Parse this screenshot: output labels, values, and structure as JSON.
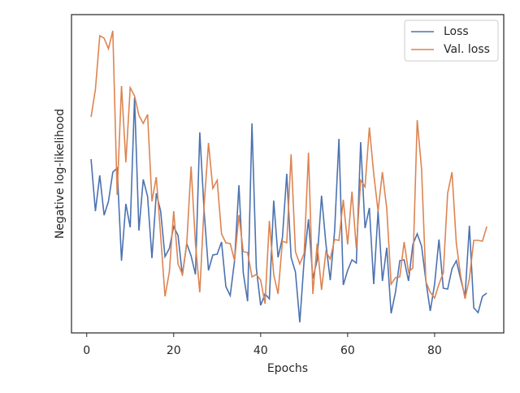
{
  "chart_data": {
    "type": "line",
    "xlabel": "Epochs",
    "ylabel": "Negative log-likelihood",
    "x": [
      1,
      2,
      3,
      4,
      5,
      6,
      7,
      8,
      9,
      10,
      11,
      12,
      13,
      14,
      15,
      16,
      17,
      18,
      19,
      20,
      21,
      22,
      23,
      24,
      25,
      26,
      27,
      28,
      29,
      30,
      31,
      32,
      33,
      34,
      35,
      36,
      37,
      38,
      39,
      40,
      41,
      42,
      43,
      44,
      45,
      46,
      47,
      48,
      49,
      50,
      51,
      52,
      53,
      54,
      55,
      56,
      57,
      58,
      59,
      60,
      61,
      62,
      63,
      64,
      65,
      66,
      67,
      68,
      69,
      70,
      71,
      72,
      73,
      74,
      75,
      76,
      77,
      78,
      79,
      80,
      81,
      82,
      83,
      84,
      85,
      86,
      87,
      88,
      89,
      90,
      91,
      92
    ],
    "series": [
      {
        "name": "Loss",
        "color": "#4c72b0",
        "values": [
          214,
          150,
          194,
          145,
          162,
          198,
          203,
          89,
          159,
          130,
          290,
          126,
          189,
          168,
          92,
          172,
          150,
          94,
          104,
          131,
          120,
          71,
          110,
          95,
          72,
          247,
          150,
          77,
          96,
          97,
          112,
          57,
          46,
          89,
          182,
          74,
          39,
          258,
          80,
          34,
          48,
          42,
          163,
          93,
          117,
          196,
          93,
          75,
          13,
          90,
          140,
          67,
          90,
          169,
          110,
          65,
          125,
          239,
          59,
          77,
          90,
          86,
          235,
          129,
          154,
          60,
          150,
          64,
          105,
          24,
          50,
          89,
          90,
          64,
          109,
          122,
          107,
          64,
          27,
          60,
          115,
          55,
          54,
          79,
          89,
          66,
          45,
          132,
          31,
          25,
          45,
          49
        ]
      },
      {
        "name": "Val. loss",
        "color": "#dd8452",
        "values": [
          266,
          300,
          366,
          363,
          350,
          372,
          170,
          304,
          210,
          302,
          292,
          268,
          258,
          269,
          162,
          192,
          120,
          45,
          75,
          150,
          85,
          72,
          110,
          205,
          110,
          50,
          157,
          234,
          178,
          188,
          122,
          111,
          110,
          89,
          145,
          100,
          99,
          69,
          72,
          65,
          36,
          138,
          72,
          48,
          113,
          111,
          220,
          100,
          85,
          98,
          222,
          48,
          110,
          53,
          100,
          91,
          115,
          114,
          164,
          109,
          174,
          104,
          188,
          180,
          253,
          196,
          150,
          198,
          153,
          60,
          68,
          69,
          112,
          75,
          80,
          262,
          202,
          63,
          50,
          43,
          60,
          74,
          172,
          198,
          110,
          70,
          42,
          67,
          114,
          114,
          113,
          131
        ]
      }
    ],
    "xlim": [
      -3.5,
      95.9
    ],
    "xticks": [
      0,
      20,
      40,
      60,
      80
    ],
    "ylim": [
      0,
      392
    ],
    "legend": "upper right"
  }
}
